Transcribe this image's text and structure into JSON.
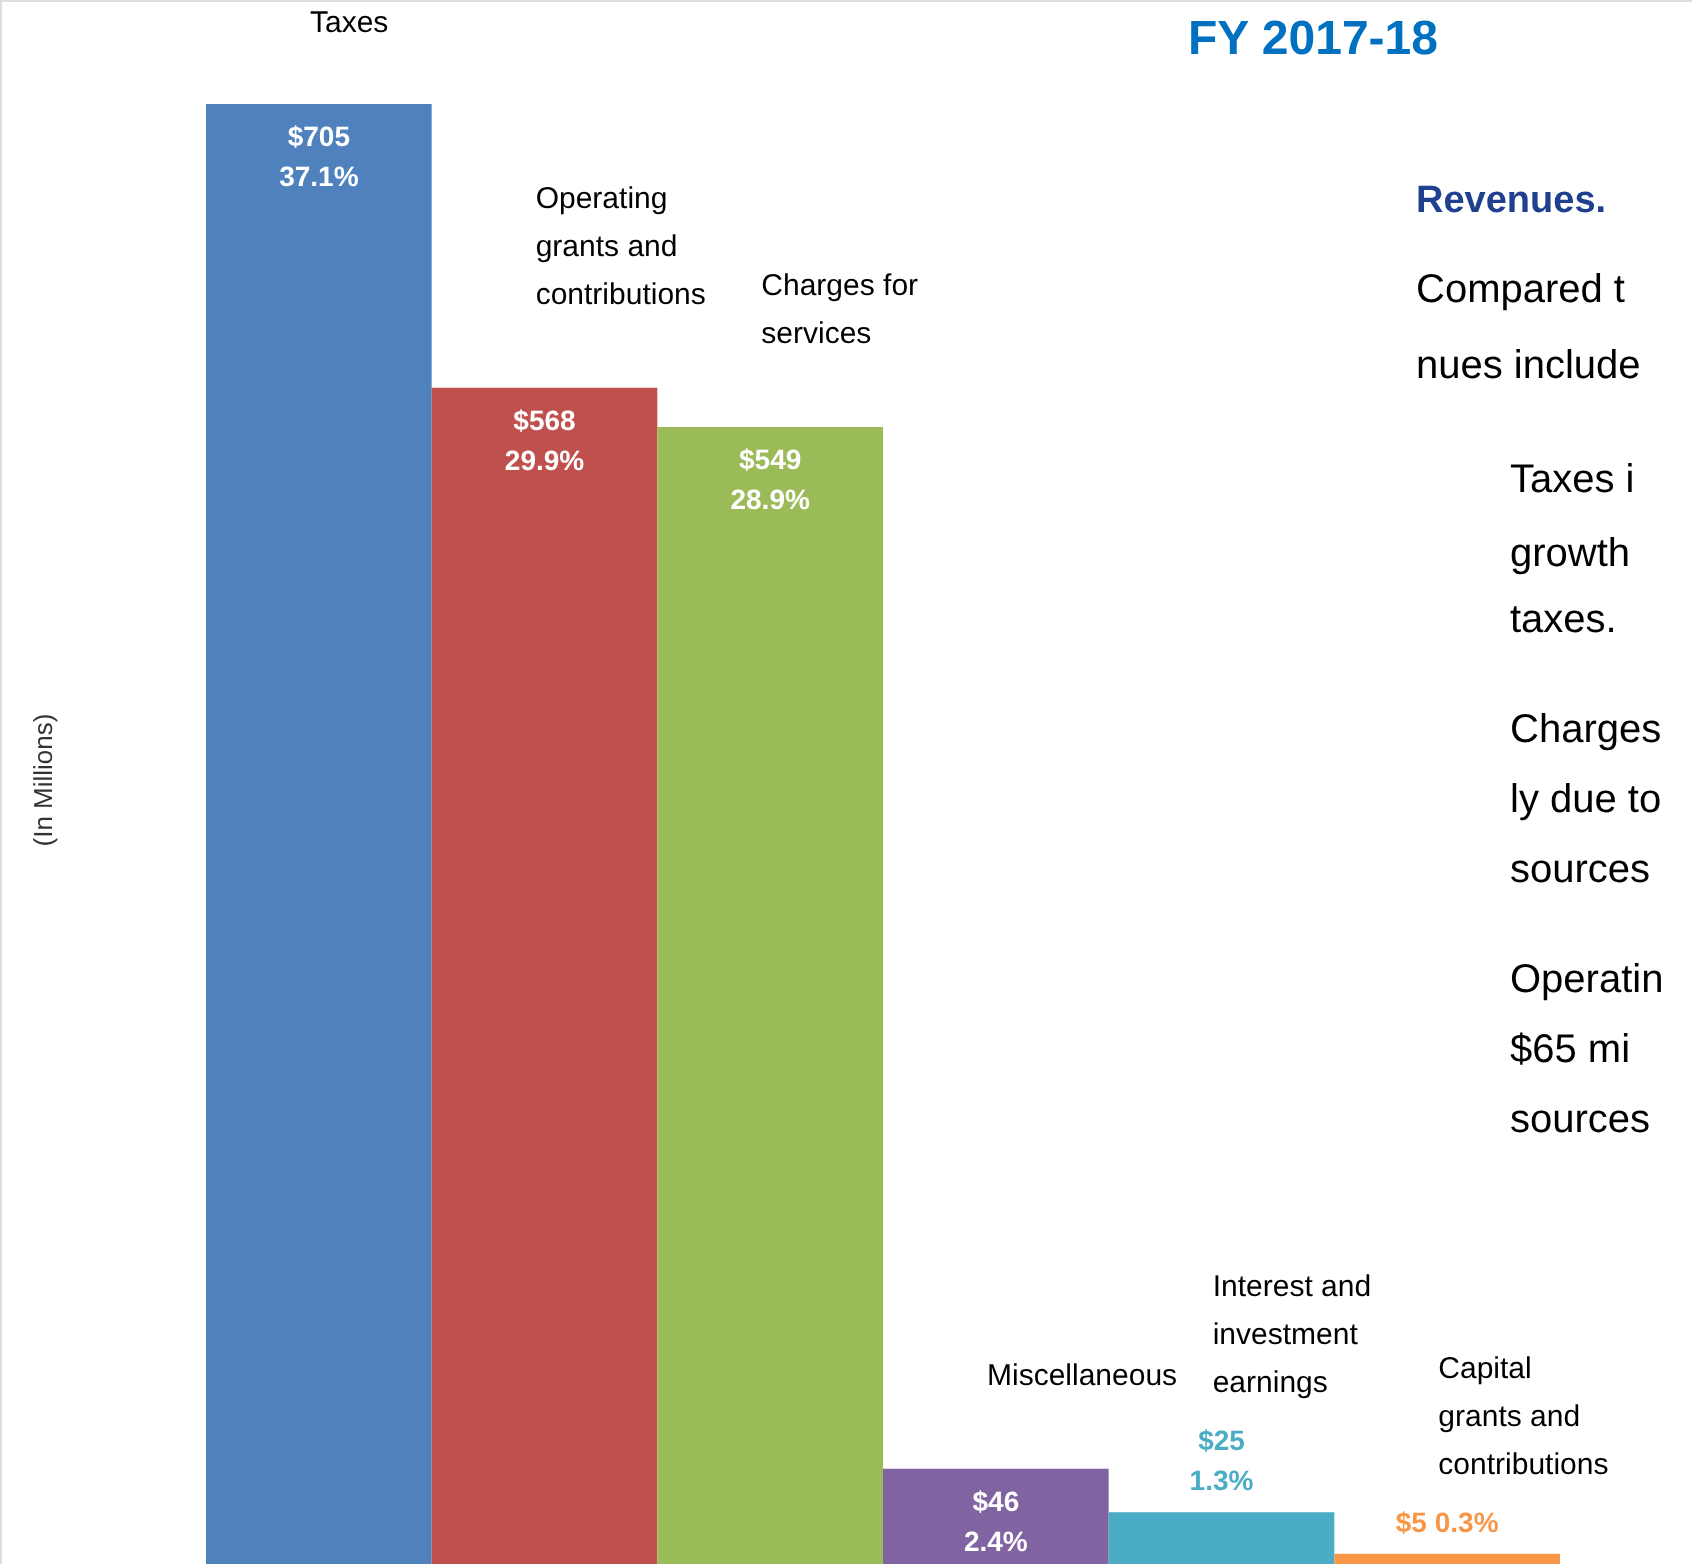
{
  "chart_data": {
    "type": "bar",
    "title": "FY 2017-18",
    "subtitle": "Revenues.",
    "categories": [
      "Taxes",
      "Operating grants and contributions",
      "Charges for services",
      "Miscellaneous",
      "Interest and investment earnings",
      "Capital grants and contributions"
    ],
    "values": [
      705,
      568,
      549,
      46,
      25,
      5
    ],
    "colors": [
      "#4f81bd",
      "#c0504d",
      "#9bbb59",
      "#8064a2",
      "#4bacc6",
      "#f79646"
    ],
    "value_labels": [
      "$705\n37.1%",
      "$568\n29.9%",
      "$549\n28.9%",
      "$46\n2.4%",
      "$25\n1.3%",
      "$5 0.3%"
    ],
    "annotations": [
      "(In Millions)",
      "Compared t",
      "nues include",
      "Taxes i",
      "growth",
      "taxes.",
      "Charges",
      "ly due to",
      "sources",
      "Operatin",
      "$65  mi",
      "sources"
    ]
  }
}
